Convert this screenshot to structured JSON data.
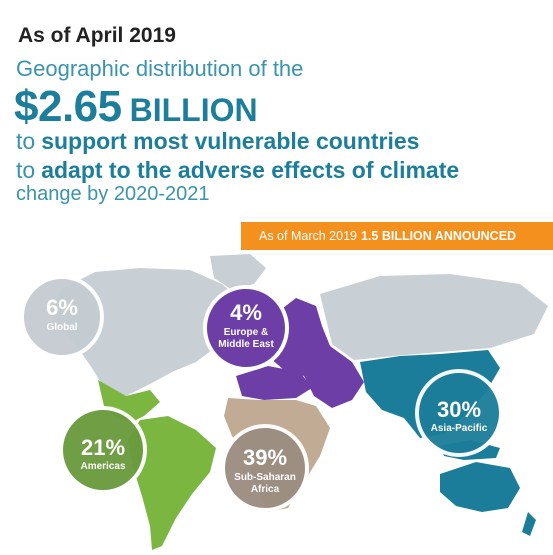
{
  "header": {
    "as_of": "As of April 2019",
    "subtitle": "Geographic distribution of the",
    "amount": "$2.65",
    "amount_unit": "BILLION",
    "line1_prefix": "to",
    "line1_emphasis": "support most vulnerable countries",
    "line2_prefix": "to",
    "line2_emphasis": "adapt to the adverse effects of climate",
    "line3": "change by 2020-2021"
  },
  "banner": {
    "prefix": "As of March 2019",
    "emphasis": "1.5 BILLION ANNOUNCED",
    "color": "#f4901e"
  },
  "regions": [
    {
      "percent": "6%",
      "name": "Global",
      "color": "#c5ccd1"
    },
    {
      "percent": "4%",
      "name_line1": "Europe &",
      "name_line2": "Middle East",
      "color": "#6c3ea6"
    },
    {
      "percent": "30%",
      "name": "Asia-Pacific",
      "color": "#1b7d99"
    },
    {
      "percent": "21%",
      "name": "Americas",
      "color": "#7ab640"
    },
    {
      "percent": "39%",
      "name_line1": "Sub-Saharan",
      "name_line2": "Africa",
      "color": "#9c8e82"
    }
  ]
}
